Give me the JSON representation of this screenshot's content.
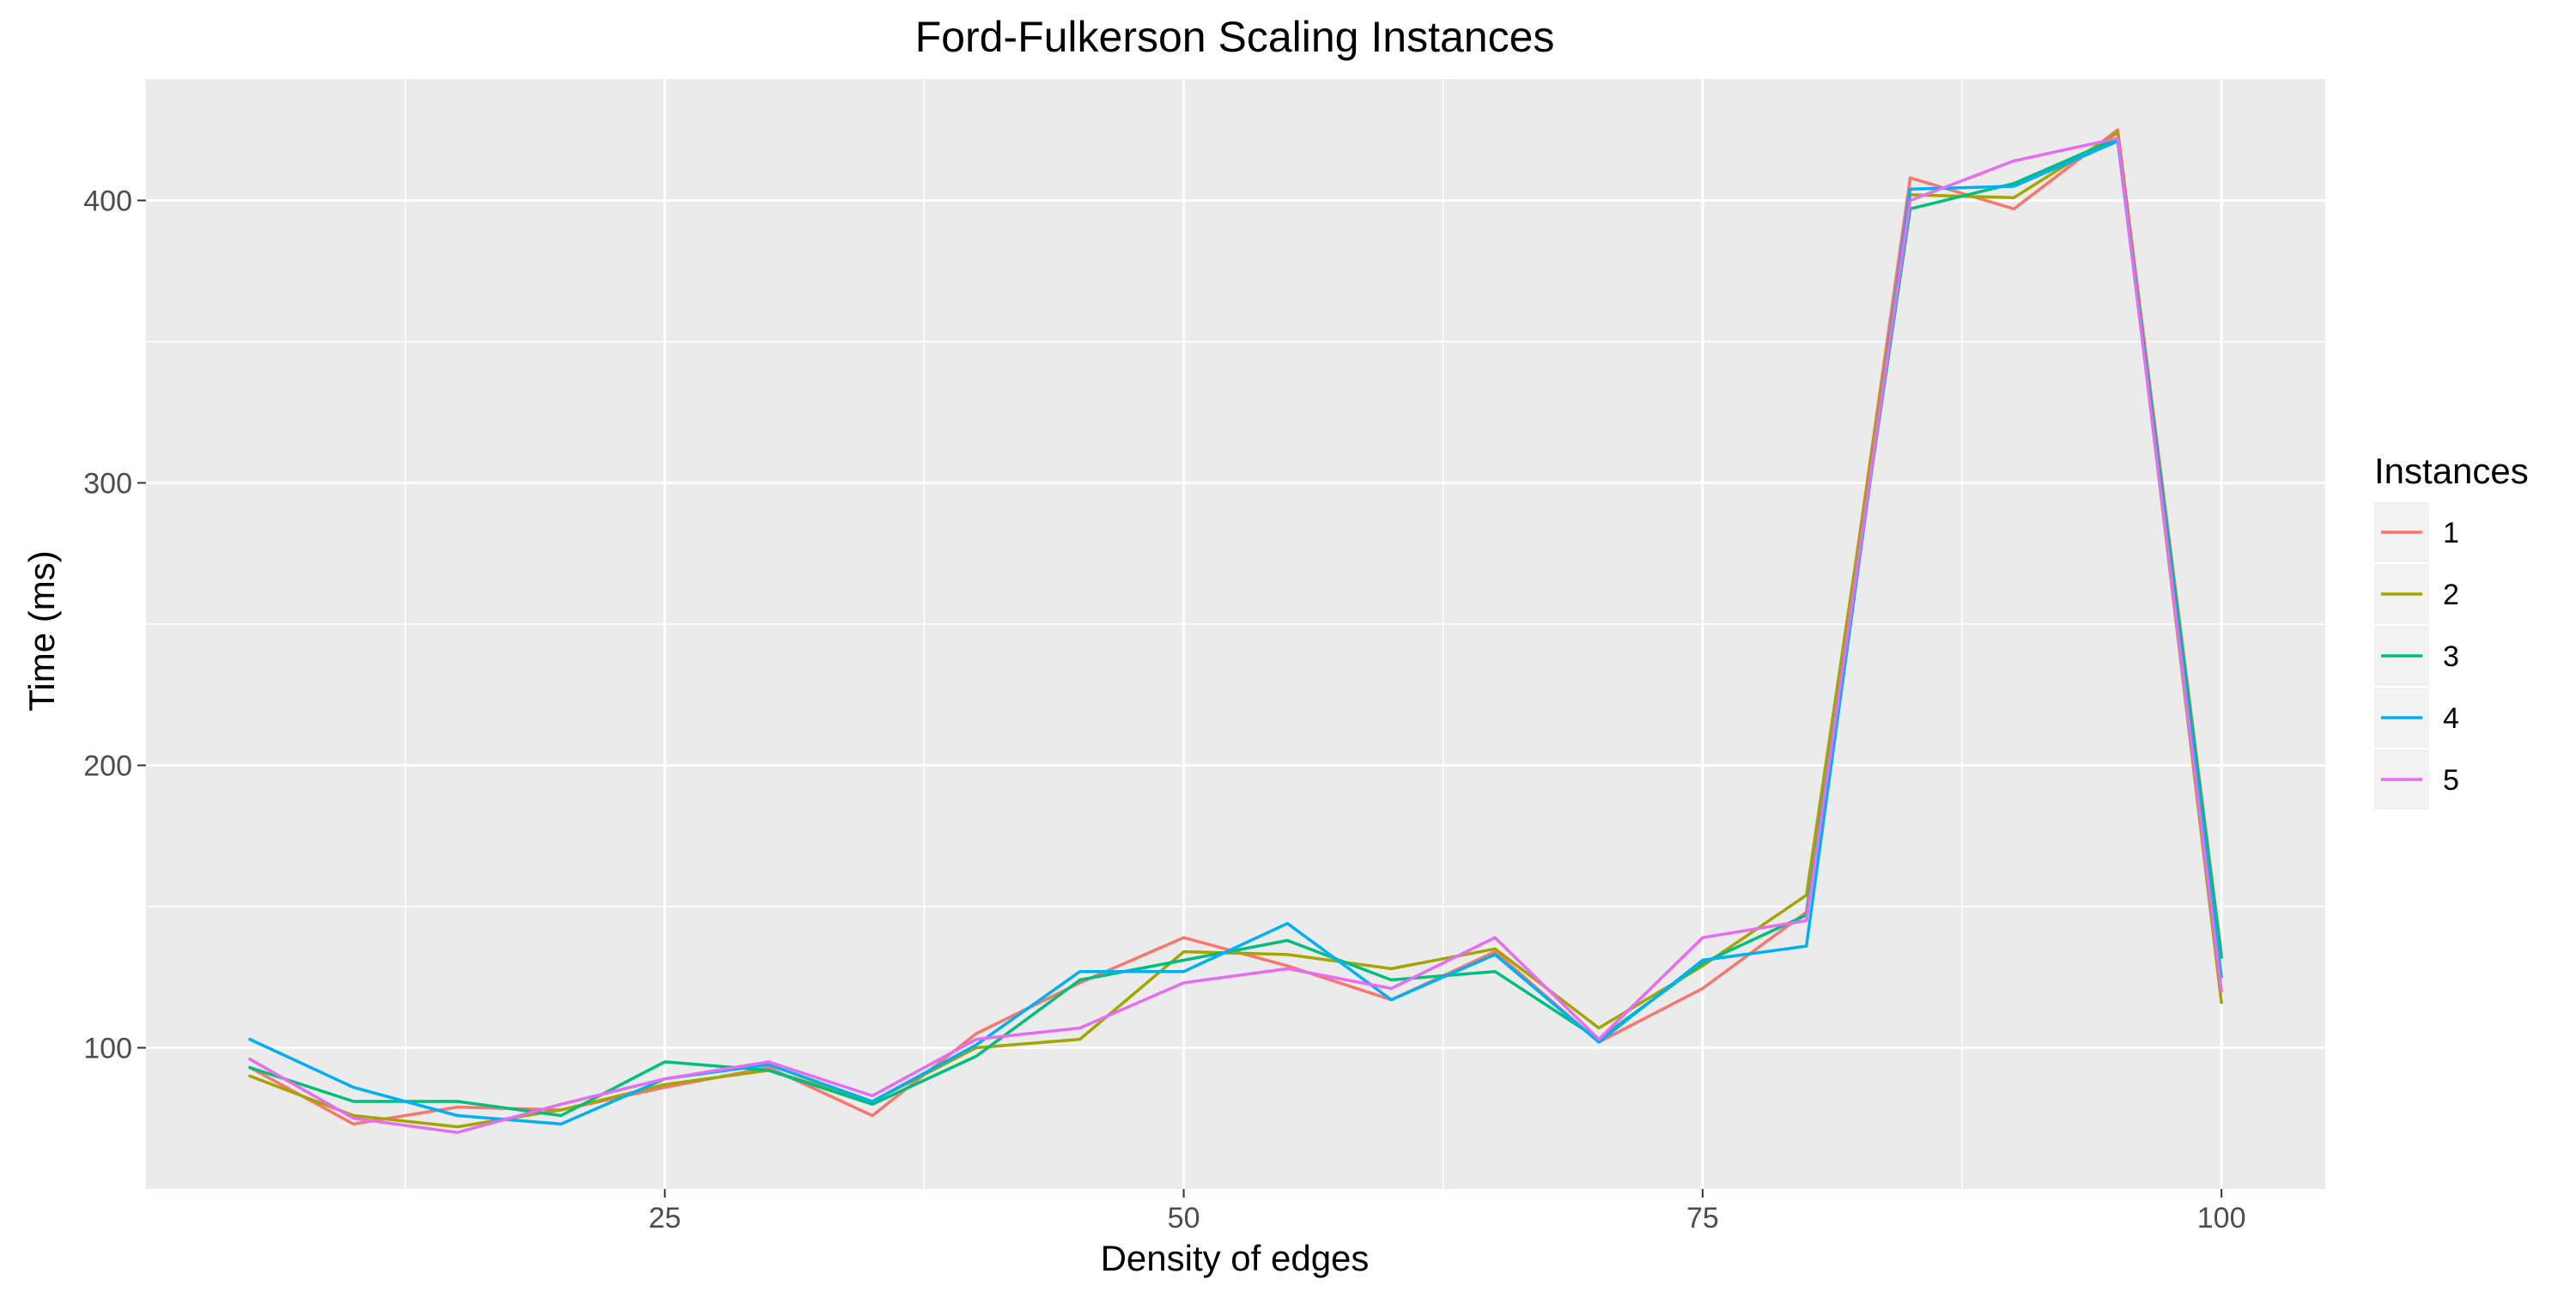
{
  "chart_data": {
    "type": "line",
    "title": "Ford-Fulkerson Scaling Instances",
    "xlabel": "Density of edges",
    "ylabel": "Time (ms)",
    "xlim": [
      0,
      105
    ],
    "ylim": [
      50,
      443
    ],
    "x_ticks": [
      25,
      50,
      75,
      100
    ],
    "y_ticks": [
      100,
      200,
      300,
      400
    ],
    "grid": true,
    "legend": {
      "title": "Instances",
      "position": "right"
    },
    "x": [
      5,
      10,
      15,
      20,
      25,
      30,
      35,
      40,
      45,
      50,
      55,
      60,
      65,
      70,
      75,
      80,
      85,
      90,
      95,
      100
    ],
    "series": [
      {
        "name": "1",
        "color": "#F8766D",
        "values": [
          93,
          73,
          79,
          78,
          86,
          93,
          76,
          105,
          123,
          139,
          129,
          117,
          134,
          102,
          121,
          148,
          408,
          397,
          425,
          133
        ]
      },
      {
        "name": "2",
        "color": "#A3A500",
        "values": [
          90,
          76,
          72,
          78,
          87,
          92,
          81,
          100,
          103,
          134,
          133,
          128,
          135,
          107,
          129,
          154,
          402,
          401,
          424,
          116
        ]
      },
      {
        "name": "3",
        "color": "#00BF7D",
        "values": [
          93,
          81,
          81,
          76,
          95,
          92,
          80,
          97,
          124,
          131,
          138,
          124,
          127,
          103,
          130,
          147,
          397,
          406,
          422,
          132
        ]
      },
      {
        "name": "4",
        "color": "#00B0F6",
        "values": [
          103,
          86,
          76,
          73,
          89,
          94,
          81,
          101,
          127,
          127,
          144,
          117,
          133,
          102,
          131,
          136,
          404,
          405,
          421,
          125
        ]
      },
      {
        "name": "5",
        "color": "#E76BF3",
        "values": [
          96,
          75,
          70,
          80,
          89,
          95,
          83,
          103,
          107,
          123,
          128,
          121,
          139,
          103,
          139,
          145,
          400,
          414,
          422,
          120
        ]
      }
    ]
  }
}
